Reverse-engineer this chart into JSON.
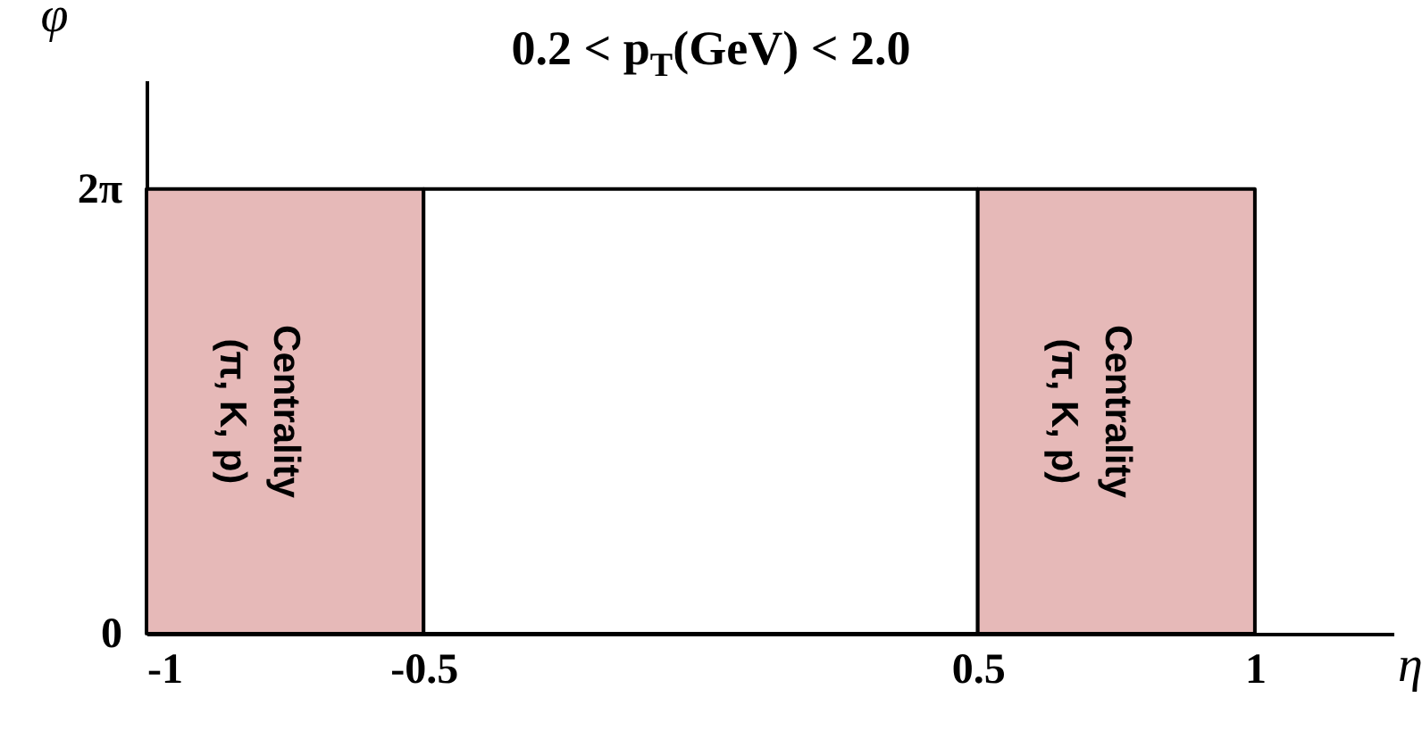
{
  "chart_data": {
    "type": "area",
    "title": "0.2 < p$_{T}$(GeV) < 2.0",
    "xlabel": "η",
    "ylabel": "φ",
    "xlim": [
      -1,
      1.25
    ],
    "xticks": [
      -1,
      -0.5,
      0.5,
      1
    ],
    "ylim": [
      0,
      7.82
    ],
    "yticks": [
      0,
      {
        "value": 6.2832,
        "label": "2π"
      }
    ],
    "series": [
      {
        "name": "Centrality (π, K, p)",
        "color": "#e6b9b8",
        "x": [
          -1,
          -0.5
        ],
        "values": [
          6.2832,
          6.2832
        ]
      },
      {
        "color": "#ffffff",
        "x": [
          -0.5,
          0.5
        ],
        "values": [
          6.2832,
          6.2832
        ]
      },
      {
        "name": "Centrality (π, K, p)",
        "color": "#e6b9b8",
        "x": [
          0.5,
          1
        ],
        "values": [
          6.2832,
          6.2832
        ]
      }
    ]
  }
}
